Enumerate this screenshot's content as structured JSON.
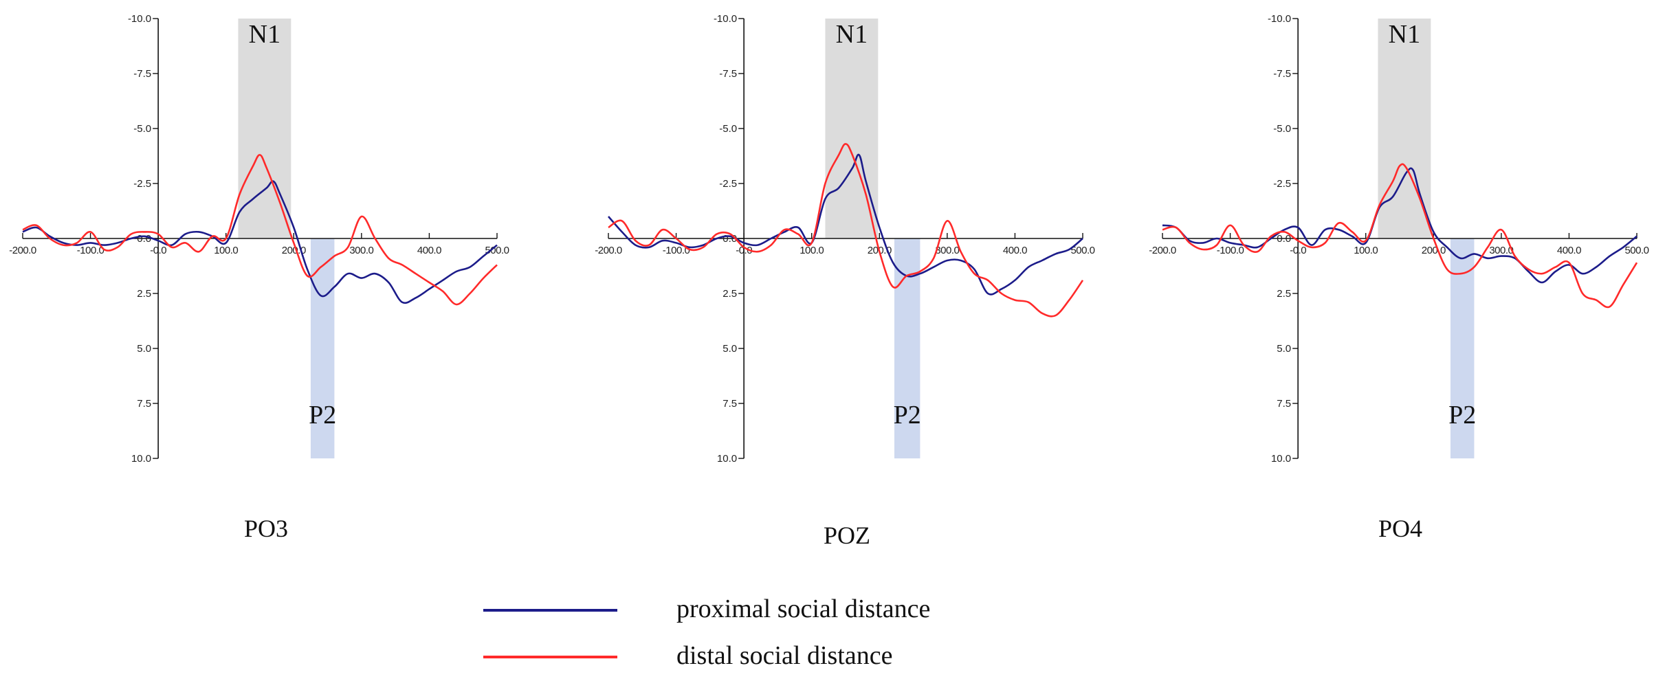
{
  "legend": {
    "items": [
      {
        "label": "proximal social distance",
        "color": "#1c1c8a"
      },
      {
        "label": "distal social distance",
        "color": "#ff2a2a"
      }
    ]
  },
  "chart_data": [
    {
      "type": "line",
      "title": "PO3",
      "xlabel": "",
      "ylabel": "",
      "xlim": [
        -200,
        500
      ],
      "ylim": [
        -10,
        10
      ],
      "y_inverted": true,
      "x_ticks": [
        "-200.0",
        "-100.0",
        "-0.0",
        "100.0",
        "200.0",
        "300.0",
        "400.0",
        "500.0"
      ],
      "y_ticks": [
        "-10.0",
        "-7.5",
        "-5.0",
        "-2.5",
        "0.0",
        "2.5",
        "5.0",
        "7.5",
        "10.0"
      ],
      "x_tick_values": [
        -200,
        -100,
        0,
        100,
        200,
        300,
        400,
        500
      ],
      "y_tick_values": [
        -10,
        -7.5,
        -5,
        -2.5,
        0,
        2.5,
        5,
        7.5,
        10
      ],
      "grid": false,
      "shaded_windows": [
        {
          "label": "N1",
          "x": [
            118,
            196
          ],
          "y": [
            -10,
            0
          ],
          "color": "#dcdcdc"
        },
        {
          "label": "P2",
          "x": [
            225,
            260
          ],
          "y": [
            0,
            10
          ],
          "color": "#cdd8ef"
        }
      ],
      "series": [
        {
          "name": "proximal social distance",
          "color": "#1c1c8a",
          "x": [
            -200,
            -180,
            -160,
            -140,
            -120,
            -100,
            -80,
            -60,
            -40,
            -20,
            0,
            20,
            40,
            60,
            80,
            100,
            120,
            140,
            160,
            170,
            180,
            200,
            220,
            240,
            260,
            280,
            300,
            320,
            340,
            360,
            380,
            400,
            420,
            440,
            460,
            480,
            500
          ],
          "y": [
            -0.3,
            -0.5,
            -0.1,
            0.2,
            0.3,
            0.2,
            0.3,
            0.2,
            0,
            -0.1,
            0.1,
            0.3,
            -0.2,
            -0.3,
            -0.1,
            0.2,
            -1.2,
            -1.8,
            -2.3,
            -2.6,
            -2.0,
            -0.5,
            1.4,
            2.6,
            2.2,
            1.6,
            1.8,
            1.6,
            2.0,
            2.9,
            2.7,
            2.3,
            1.9,
            1.5,
            1.3,
            0.8,
            0.3
          ]
        },
        {
          "name": "distal social distance",
          "color": "#ff2a2a",
          "x": [
            -200,
            -180,
            -160,
            -140,
            -120,
            -100,
            -80,
            -60,
            -40,
            -20,
            0,
            20,
            40,
            60,
            80,
            100,
            120,
            140,
            150,
            160,
            180,
            200,
            220,
            240,
            260,
            280,
            300,
            320,
            340,
            360,
            380,
            400,
            420,
            440,
            460,
            480,
            500
          ],
          "y": [
            -0.4,
            -0.6,
            0,
            0.3,
            0.2,
            -0.3,
            0.5,
            0.4,
            -0.2,
            -0.3,
            -0.2,
            0.4,
            0.2,
            0.6,
            -0.1,
            0,
            -2.0,
            -3.3,
            -3.8,
            -3.2,
            -1.6,
            0.2,
            1.7,
            1.3,
            0.8,
            0.4,
            -1.0,
            0,
            0.9,
            1.2,
            1.6,
            2.0,
            2.4,
            3.0,
            2.5,
            1.8,
            1.2
          ]
        }
      ]
    },
    {
      "type": "line",
      "title": "POZ",
      "xlabel": "",
      "ylabel": "",
      "xlim": [
        -200,
        500
      ],
      "ylim": [
        -10,
        10
      ],
      "y_inverted": true,
      "x_ticks": [
        "-200.0",
        "-100.0",
        "-0.0",
        "100.0",
        "200.0",
        "300.0",
        "400.0",
        "500.0"
      ],
      "y_ticks": [
        "-10.0",
        "-7.5",
        "-5.0",
        "-2.5",
        "0.0",
        "2.5",
        "5.0",
        "7.5",
        "10.0"
      ],
      "x_tick_values": [
        -200,
        -100,
        0,
        100,
        200,
        300,
        400,
        500
      ],
      "y_tick_values": [
        -10,
        -7.5,
        -5,
        -2.5,
        0,
        2.5,
        5,
        7.5,
        10
      ],
      "grid": false,
      "shaded_windows": [
        {
          "label": "N1",
          "x": [
            120,
            198
          ],
          "y": [
            -10,
            0
          ],
          "color": "#dcdcdc"
        },
        {
          "label": "P2",
          "x": [
            222,
            260
          ],
          "y": [
            0,
            10
          ],
          "color": "#cdd8ef"
        }
      ],
      "series": [
        {
          "name": "proximal social distance",
          "color": "#1c1c8a",
          "x": [
            -200,
            -180,
            -160,
            -140,
            -120,
            -100,
            -80,
            -60,
            -40,
            -20,
            0,
            20,
            40,
            60,
            80,
            100,
            120,
            140,
            160,
            170,
            180,
            200,
            220,
            240,
            260,
            280,
            300,
            320,
            340,
            360,
            380,
            400,
            420,
            440,
            460,
            480,
            500
          ],
          "y": [
            -1.0,
            -0.3,
            0.3,
            0.4,
            0.1,
            0.2,
            0.4,
            0.3,
            0,
            -0.1,
            0.2,
            0.3,
            0,
            -0.3,
            -0.5,
            0.2,
            -1.8,
            -2.3,
            -3.2,
            -3.8,
            -2.6,
            -0.5,
            1.1,
            1.7,
            1.6,
            1.3,
            1.0,
            1.0,
            1.4,
            2.5,
            2.3,
            1.9,
            1.3,
            1.0,
            0.7,
            0.5,
            0
          ]
        },
        {
          "name": "distal social distance",
          "color": "#ff2a2a",
          "x": [
            -200,
            -180,
            -160,
            -140,
            -120,
            -100,
            -80,
            -60,
            -40,
            -20,
            0,
            20,
            40,
            60,
            80,
            100,
            120,
            140,
            150,
            160,
            180,
            200,
            220,
            240,
            260,
            280,
            300,
            320,
            340,
            360,
            380,
            400,
            420,
            440,
            460,
            480,
            500
          ],
          "y": [
            -0.5,
            -0.8,
            0.1,
            0.3,
            -0.4,
            0,
            0.5,
            0.4,
            -0.2,
            -0.2,
            0.4,
            0.6,
            0.3,
            -0.4,
            -0.2,
            0.2,
            -2.5,
            -3.8,
            -4.3,
            -3.8,
            -2.0,
            0.6,
            2.2,
            1.7,
            1.5,
            0.9,
            -0.8,
            0.6,
            1.6,
            1.9,
            2.5,
            2.8,
            2.9,
            3.4,
            3.5,
            2.8,
            1.9
          ]
        }
      ]
    },
    {
      "type": "line",
      "title": "PO4",
      "xlabel": "",
      "ylabel": "",
      "xlim": [
        -200,
        500
      ],
      "ylim": [
        -10,
        10
      ],
      "y_inverted": true,
      "x_ticks": [
        "-200.0",
        "-100.0",
        "-0.0",
        "100.0",
        "200.0",
        "300.0",
        "400.0",
        "500.0"
      ],
      "y_ticks": [
        "-10.0",
        "-7.5",
        "-5.0",
        "-2.5",
        "0.0",
        "2.5",
        "5.0",
        "7.5",
        "10.0"
      ],
      "x_tick_values": [
        -200,
        -100,
        0,
        100,
        200,
        300,
        400,
        500
      ],
      "y_tick_values": [
        -10,
        -7.5,
        -5,
        -2.5,
        0,
        2.5,
        5,
        7.5,
        10
      ],
      "grid": false,
      "shaded_windows": [
        {
          "label": "N1",
          "x": [
            118,
            196
          ],
          "y": [
            -10,
            0
          ],
          "color": "#dcdcdc"
        },
        {
          "label": "P2",
          "x": [
            225,
            260
          ],
          "y": [
            0,
            10
          ],
          "color": "#cdd8ef"
        }
      ],
      "series": [
        {
          "name": "proximal social distance",
          "color": "#1c1c8a",
          "x": [
            -200,
            -180,
            -160,
            -140,
            -120,
            -100,
            -80,
            -60,
            -40,
            -20,
            0,
            20,
            40,
            60,
            80,
            100,
            120,
            140,
            160,
            170,
            180,
            200,
            220,
            240,
            260,
            280,
            300,
            320,
            340,
            360,
            380,
            400,
            420,
            440,
            460,
            480,
            500
          ],
          "y": [
            -0.6,
            -0.5,
            0.1,
            0.2,
            0,
            0.2,
            0.3,
            0.4,
            0,
            -0.4,
            -0.5,
            0.3,
            -0.4,
            -0.4,
            -0.1,
            0.2,
            -1.4,
            -1.9,
            -3.0,
            -3.1,
            -2.0,
            -0.3,
            0.4,
            0.9,
            0.7,
            0.9,
            0.8,
            0.9,
            1.5,
            2.0,
            1.5,
            1.2,
            1.6,
            1.3,
            0.8,
            0.4,
            -0.1
          ]
        },
        {
          "name": "distal social distance",
          "color": "#ff2a2a",
          "x": [
            -200,
            -180,
            -160,
            -140,
            -120,
            -100,
            -80,
            -60,
            -40,
            -20,
            0,
            20,
            40,
            60,
            80,
            100,
            120,
            140,
            150,
            160,
            180,
            200,
            220,
            240,
            260,
            280,
            300,
            320,
            340,
            360,
            380,
            400,
            420,
            440,
            460,
            480,
            500
          ],
          "y": [
            -0.4,
            -0.5,
            0.2,
            0.5,
            0.3,
            -0.6,
            0.3,
            0.6,
            -0.1,
            -0.3,
            0.1,
            0.4,
            0.2,
            -0.7,
            -0.3,
            0.1,
            -1.5,
            -2.6,
            -3.3,
            -3.2,
            -1.8,
            0,
            1.4,
            1.6,
            1.3,
            0.4,
            -0.4,
            0.8,
            1.4,
            1.6,
            1.3,
            1.1,
            2.5,
            2.8,
            3.1,
            2.1,
            1.1
          ]
        }
      ]
    }
  ]
}
